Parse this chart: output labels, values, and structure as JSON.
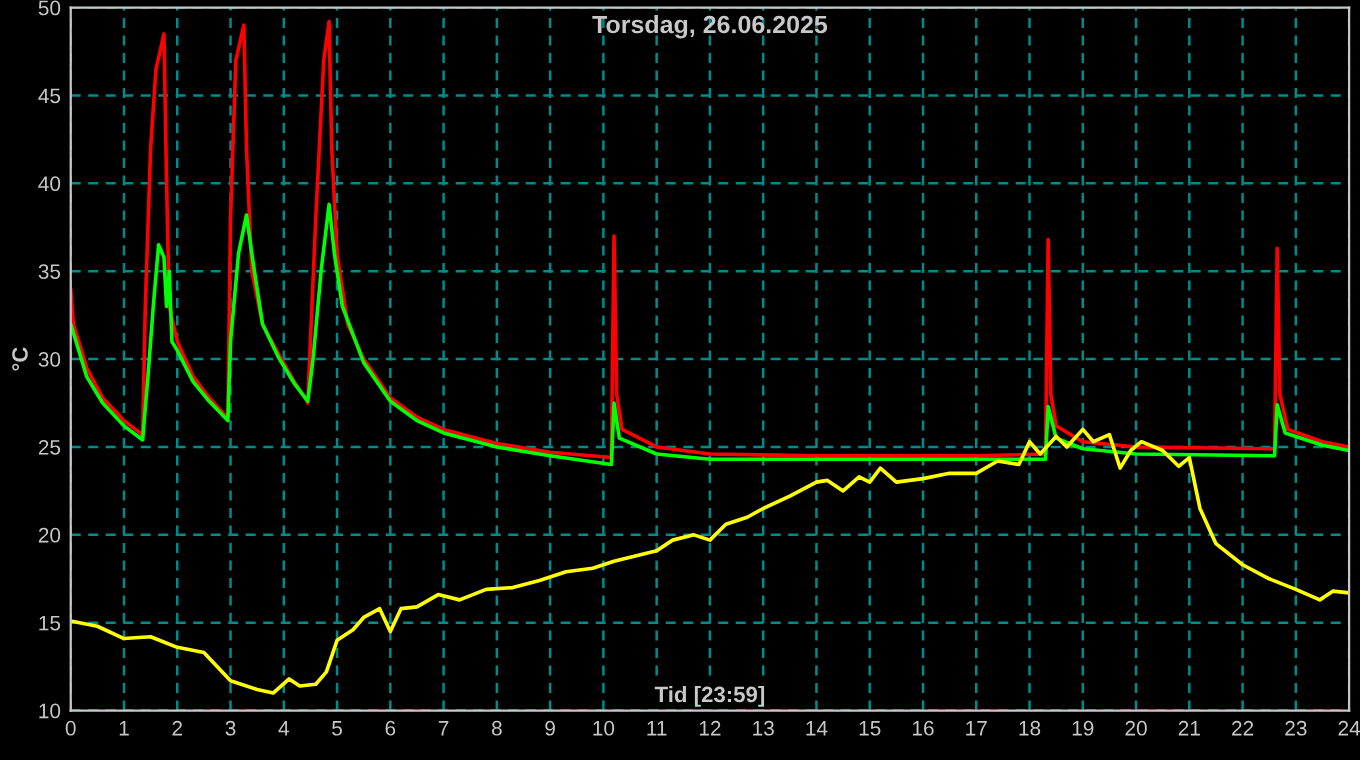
{
  "chart_data": {
    "type": "line",
    "title": "Torsdag, 26.06.2025",
    "xlabel": "Tid [23:59]",
    "ylabel": "°C",
    "xlim": [
      0,
      24
    ],
    "xticks": [
      0,
      1,
      2,
      3,
      4,
      5,
      6,
      7,
      8,
      9,
      10,
      11,
      12,
      13,
      14,
      15,
      16,
      17,
      18,
      19,
      20,
      21,
      22,
      23,
      24
    ],
    "ylim": [
      10,
      50
    ],
    "yticks": [
      10,
      15,
      20,
      25,
      30,
      35,
      40,
      45,
      50
    ],
    "grid": true,
    "line_style": "solid",
    "marker": "none",
    "series": [
      {
        "color": "#ff0000",
        "x": [
          0,
          0.05,
          0.3,
          0.6,
          1.0,
          1.3,
          1.35,
          1.4,
          1.5,
          1.6,
          1.7,
          1.75,
          1.8,
          1.85,
          2.0,
          2.3,
          2.6,
          2.9,
          2.95,
          3.0,
          3.1,
          3.25,
          3.3,
          3.4,
          3.6,
          3.9,
          4.2,
          4.4,
          4.45,
          4.6,
          4.75,
          4.85,
          4.9,
          5.0,
          5.2,
          5.5,
          6.0,
          6.5,
          7.0,
          8.0,
          9.0,
          10.15,
          10.2,
          10.25,
          10.35,
          11.0,
          12.0,
          14.0,
          17.0,
          18.3,
          18.35,
          18.4,
          18.5,
          19.0,
          20.0,
          22.6,
          22.65,
          22.7,
          22.85,
          23.5,
          24
        ],
        "values": [
          34,
          32,
          29.5,
          27.8,
          26.5,
          25.8,
          25.6,
          33,
          42,
          46.5,
          47.8,
          48.5,
          40,
          33,
          31,
          29,
          27.8,
          26.8,
          26.6,
          38,
          47,
          49,
          42,
          35,
          32,
          30.3,
          28.7,
          27.8,
          27.5,
          38,
          47,
          49.2,
          42,
          36,
          32,
          30,
          27.8,
          26.7,
          26,
          25.2,
          24.7,
          24.4,
          37,
          28,
          26,
          25.0,
          24.6,
          24.5,
          24.5,
          24.6,
          36.8,
          28,
          26.2,
          25.3,
          25.0,
          24.9,
          36.3,
          28,
          26,
          25.3,
          25.0
        ]
      },
      {
        "color": "#00ff00",
        "x": [
          0,
          0.3,
          0.6,
          1.0,
          1.35,
          1.45,
          1.55,
          1.65,
          1.75,
          1.8,
          1.85,
          1.9,
          2.0,
          2.3,
          2.6,
          2.95,
          3.0,
          3.15,
          3.3,
          3.4,
          3.6,
          3.9,
          4.2,
          4.45,
          4.55,
          4.7,
          4.85,
          4.95,
          5.1,
          5.5,
          6.0,
          6.5,
          7.0,
          8.0,
          9.0,
          10.15,
          10.2,
          10.3,
          11,
          12,
          17,
          18.3,
          18.35,
          18.5,
          19,
          20,
          22.6,
          22.65,
          22.8,
          23.5,
          24
        ],
        "values": [
          32,
          29,
          27.5,
          26.2,
          25.4,
          29,
          33,
          36.5,
          35.8,
          33,
          35,
          31,
          30.5,
          28.7,
          27.6,
          26.5,
          31,
          36,
          38.2,
          36,
          32,
          30.1,
          28.6,
          27.6,
          30,
          35,
          38.8,
          36,
          33,
          29.8,
          27.6,
          26.5,
          25.8,
          25.0,
          24.5,
          24.0,
          27.5,
          25.5,
          24.6,
          24.3,
          24.3,
          24.3,
          27.3,
          25.5,
          24.9,
          24.6,
          24.5,
          27.4,
          25.8,
          25.1,
          24.8
        ]
      },
      {
        "color": "#ffff00",
        "x": [
          0,
          0.5,
          1.0,
          1.5,
          2.0,
          2.5,
          3.0,
          3.5,
          3.8,
          4.1,
          4.3,
          4.6,
          4.8,
          5.0,
          5.3,
          5.5,
          5.8,
          6.0,
          6.2,
          6.5,
          6.9,
          7.3,
          7.8,
          8.3,
          8.8,
          9.3,
          9.8,
          10.2,
          10.6,
          11.0,
          11.3,
          11.7,
          12.0,
          12.3,
          12.7,
          13.0,
          13.5,
          14.0,
          14.2,
          14.5,
          14.8,
          15.0,
          15.2,
          15.5,
          16.0,
          16.5,
          17.0,
          17.4,
          17.8,
          18.0,
          18.2,
          18.5,
          18.7,
          19.0,
          19.2,
          19.5,
          19.7,
          19.9,
          20.1,
          20.5,
          20.8,
          21.0,
          21.2,
          21.5,
          22.0,
          22.5,
          23.0,
          23.45,
          23.7,
          24.0
        ],
        "values": [
          15.1,
          14.8,
          14.1,
          14.2,
          13.6,
          13.3,
          11.7,
          11.2,
          11.0,
          11.8,
          11.4,
          11.5,
          12.2,
          14.0,
          14.6,
          15.3,
          15.8,
          14.5,
          15.8,
          15.9,
          16.6,
          16.3,
          16.9,
          17.0,
          17.4,
          17.9,
          18.1,
          18.5,
          18.8,
          19.1,
          19.7,
          20.0,
          19.7,
          20.6,
          21.0,
          21.5,
          22.2,
          23.0,
          23.1,
          22.5,
          23.3,
          23.0,
          23.8,
          23.0,
          23.2,
          23.5,
          23.5,
          24.2,
          24.0,
          25.3,
          24.6,
          25.6,
          25.0,
          26.0,
          25.3,
          25.7,
          23.8,
          24.8,
          25.3,
          24.8,
          23.9,
          24.4,
          21.5,
          19.5,
          18.3,
          17.5,
          16.9,
          16.3,
          16.8,
          16.7
        ]
      }
    ]
  }
}
